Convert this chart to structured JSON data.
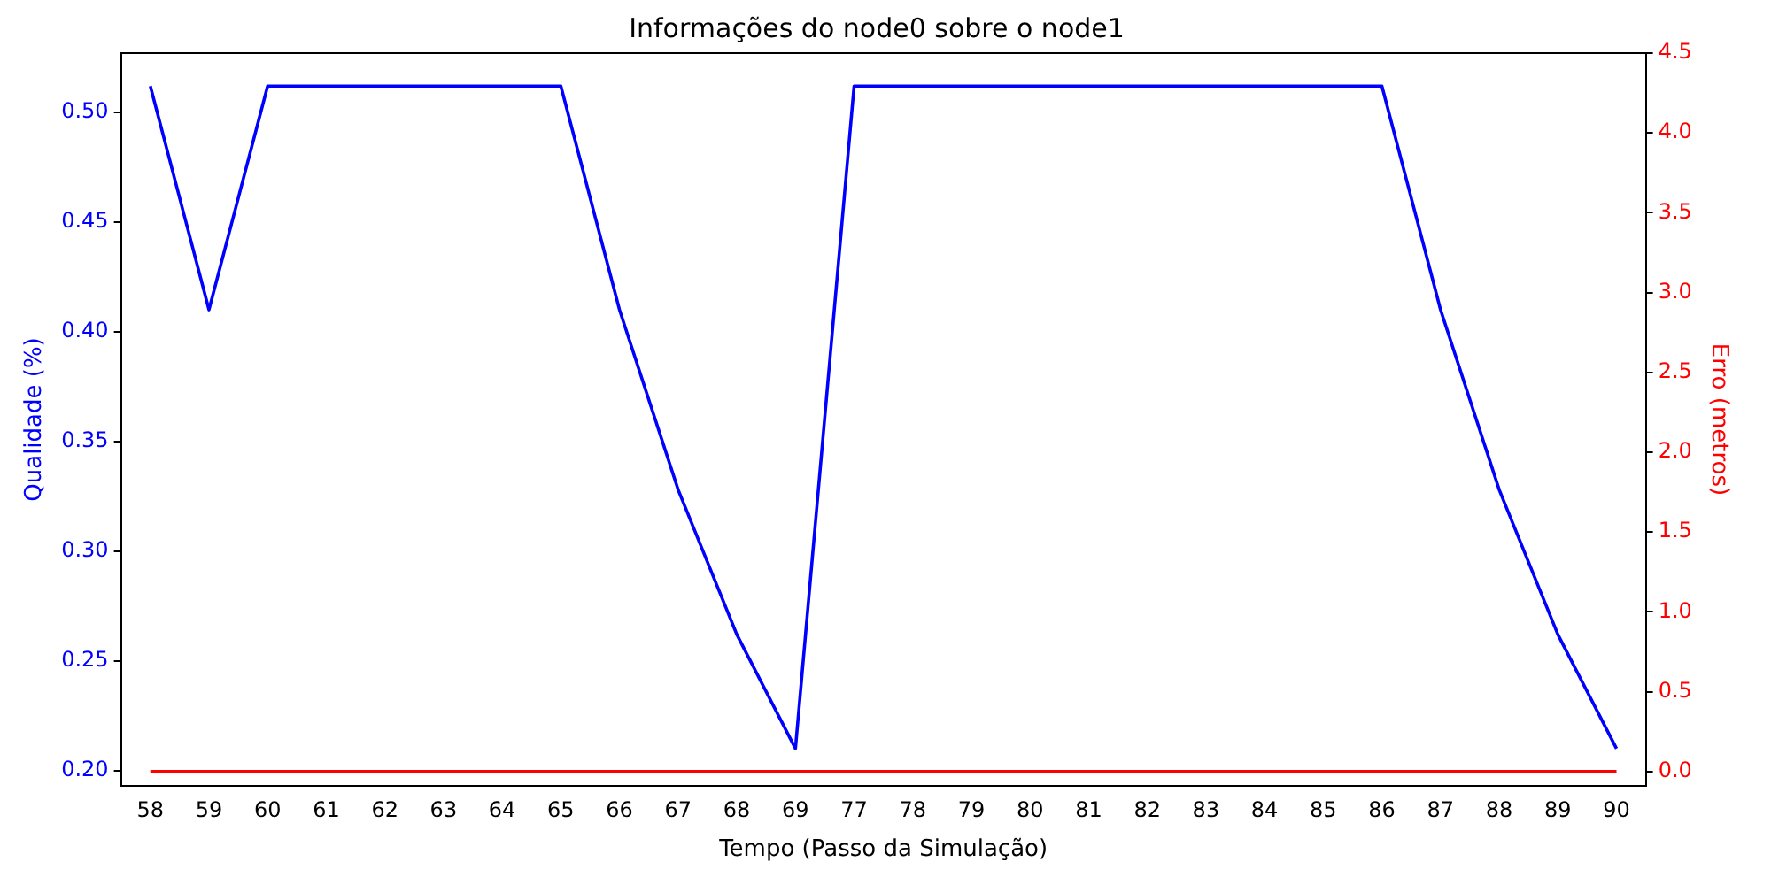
{
  "chart_data": {
    "type": "line",
    "title": "Informações do node0 sobre o node1",
    "xlabel": "Tempo (Passo da Simulação)",
    "ylabel": "Qualidade (%)",
    "y2label": "Erro (metros)",
    "categories": [
      "58",
      "59",
      "60",
      "61",
      "62",
      "63",
      "64",
      "65",
      "66",
      "67",
      "68",
      "69",
      "77",
      "78",
      "79",
      "80",
      "81",
      "82",
      "83",
      "84",
      "85",
      "86",
      "87",
      "88",
      "89",
      "90"
    ],
    "series": [
      {
        "color": "#0000ff",
        "values": [
          0.512,
          0.41,
          0.512,
          0.512,
          0.512,
          0.512,
          0.512,
          0.512,
          0.41,
          0.328,
          0.262,
          0.21,
          0.512,
          0.512,
          0.512,
          0.512,
          0.512,
          0.512,
          0.512,
          0.512,
          0.512,
          0.512,
          0.41,
          0.328,
          0.262,
          0.21
        ]
      },
      {
        "color": "#ff0000",
        "axis": "y2",
        "values": [
          0,
          0,
          0,
          0,
          0,
          0,
          0,
          0,
          0,
          0,
          0,
          0,
          0,
          0,
          0,
          0,
          0,
          0,
          0,
          0,
          0,
          0,
          0,
          0,
          0,
          0
        ]
      }
    ],
    "ylim": [
      0.193,
      0.527
    ],
    "yticks": [
      {
        "value": 0.2,
        "label": "0.20"
      },
      {
        "value": 0.25,
        "label": "0.25"
      },
      {
        "value": 0.3,
        "label": "0.30"
      },
      {
        "value": 0.35,
        "label": "0.35"
      },
      {
        "value": 0.4,
        "label": "0.40"
      },
      {
        "value": 0.45,
        "label": "0.45"
      },
      {
        "value": 0.5,
        "label": "0.50"
      }
    ],
    "y2lim": [
      -0.09,
      4.5
    ],
    "y2ticks": [
      {
        "value": 0,
        "label": "0.0"
      },
      {
        "value": 0.5,
        "label": "0.5"
      },
      {
        "value": 1,
        "label": "1.0"
      },
      {
        "value": 1.5,
        "label": "1.5"
      },
      {
        "value": 2,
        "label": "2.0"
      },
      {
        "value": 2.5,
        "label": "2.5"
      },
      {
        "value": 3,
        "label": "3.0"
      },
      {
        "value": 3.5,
        "label": "3.5"
      },
      {
        "value": 4,
        "label": "4.0"
      },
      {
        "value": 4.5,
        "label": "4.5"
      }
    ],
    "grid": false,
    "legend": false,
    "marker": "none",
    "line_style": "solid"
  }
}
